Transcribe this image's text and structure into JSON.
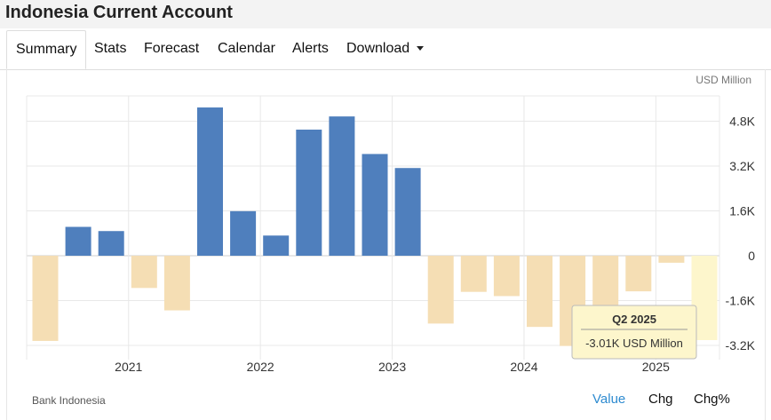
{
  "page": {
    "title": "Indonesia Current Account"
  },
  "tabs": [
    {
      "label": "Summary",
      "active": true
    },
    {
      "label": "Stats"
    },
    {
      "label": "Forecast"
    },
    {
      "label": "Calendar"
    },
    {
      "label": "Alerts"
    },
    {
      "label": "Download",
      "icon": "caret-down-icon"
    }
  ],
  "chart": {
    "unit_label": "USD Million",
    "source": "Bank Indonesia",
    "modes": [
      "Value",
      "Chg",
      "Chg%"
    ],
    "active_mode": "Value",
    "tooltip": {
      "title": "Q2 2025",
      "value": "-3.01K USD Million"
    }
  },
  "colors": {
    "positive": "#4f7fbd",
    "negative": "#f5deb4",
    "highlight": "#fdf6cc",
    "link": "#2e8bd0"
  },
  "chart_data": {
    "type": "bar",
    "x": [
      "Q2 2020",
      "Q3 2020",
      "Q4 2020",
      "Q1 2021",
      "Q2 2021",
      "Q3 2021",
      "Q4 2021",
      "Q1 2022",
      "Q2 2022",
      "Q3 2022",
      "Q4 2022",
      "Q1 2023",
      "Q2 2023",
      "Q3 2023",
      "Q4 2023",
      "Q1 2024",
      "Q2 2024",
      "Q3 2024",
      "Q4 2024",
      "Q1 2025",
      "Q2 2025"
    ],
    "values": [
      -3040,
      1030,
      880,
      -1150,
      -1950,
      5290,
      1590,
      720,
      4500,
      4970,
      3630,
      3130,
      -2420,
      -1290,
      -1440,
      -2540,
      -3220,
      -2990,
      -1270,
      -250,
      -3010
    ],
    "highlight_index": 20,
    "x_tick_labels": [
      "2021",
      "2022",
      "2023",
      "2024",
      "2025"
    ],
    "y_tick_labels": [
      "4.8K",
      "3.2K",
      "1.6K",
      "0",
      "-1.6K",
      "-3.2K"
    ],
    "y_ticks": [
      4800,
      3200,
      1600,
      0,
      -1600,
      -3200
    ],
    "ylim": [
      -3700,
      5500
    ],
    "grid": true,
    "ylabel": "USD Million",
    "y_axis_position": "right"
  }
}
